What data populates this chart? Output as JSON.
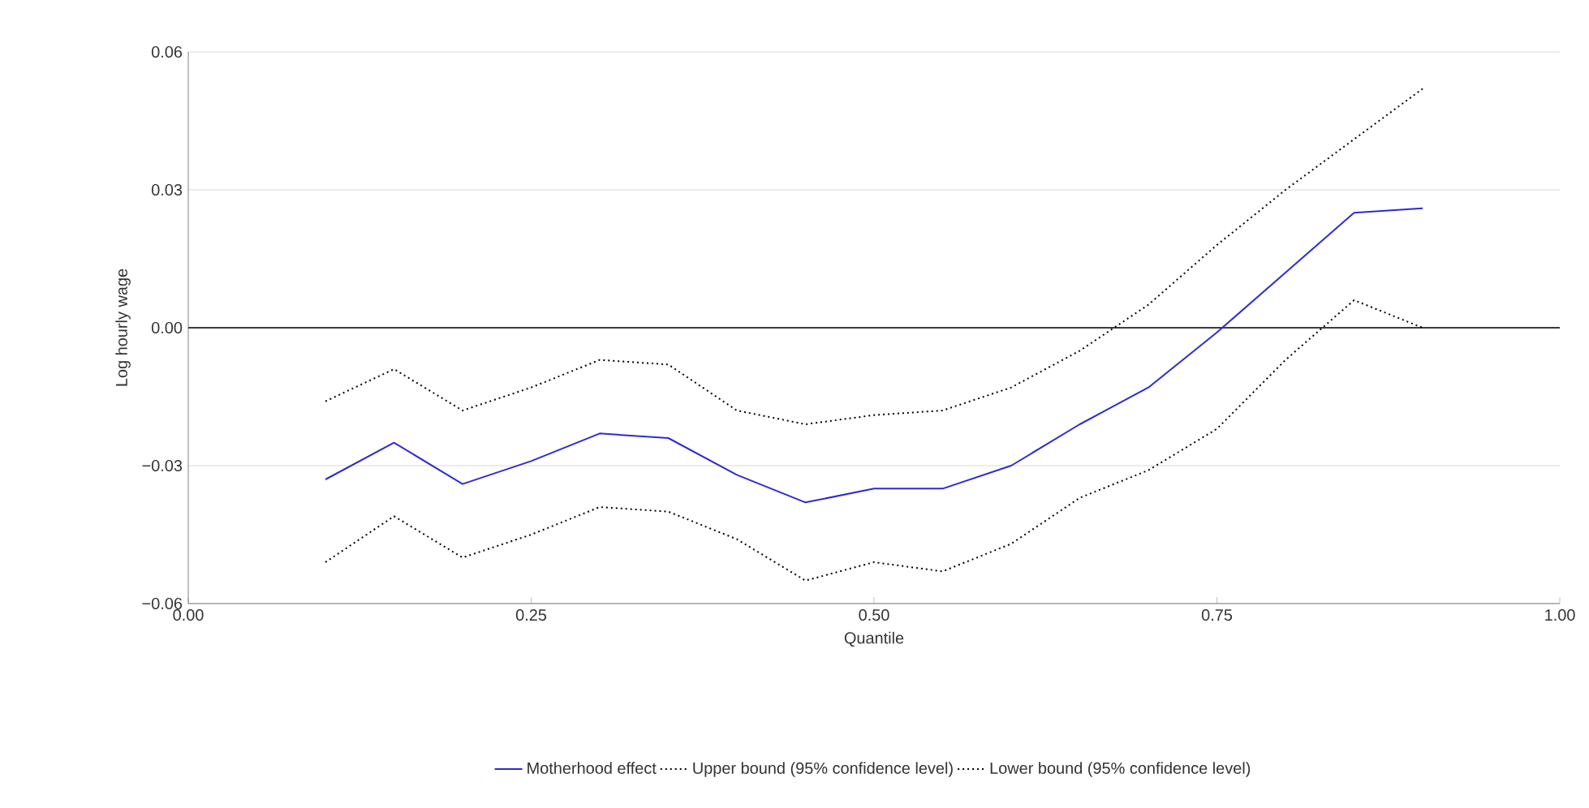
{
  "chart_data": {
    "type": "line",
    "xlabel": "Quantile",
    "ylabel": "Log hourly wage",
    "x": [
      0.1,
      0.15,
      0.2,
      0.25,
      0.3,
      0.35,
      0.4,
      0.45,
      0.5,
      0.55,
      0.6,
      0.65,
      0.7,
      0.75,
      0.8,
      0.85,
      0.9
    ],
    "series": [
      {
        "name": "Motherhood effect",
        "color": "#2b2bd4",
        "line_style": "solid",
        "values": [
          -0.033,
          -0.025,
          -0.034,
          -0.029,
          -0.023,
          -0.024,
          -0.032,
          -0.038,
          -0.035,
          -0.035,
          -0.03,
          -0.021,
          -0.013,
          -0.001,
          0.012,
          0.025,
          0.026
        ]
      },
      {
        "name": "Upper bound (95% confidence level)",
        "color": "#000000",
        "line_style": "dotted",
        "values": [
          -0.016,
          -0.009,
          -0.018,
          -0.013,
          -0.007,
          -0.008,
          -0.018,
          -0.021,
          -0.019,
          -0.018,
          -0.013,
          -0.005,
          0.005,
          0.018,
          0.03,
          0.041,
          0.052
        ]
      },
      {
        "name": "Lower bound (95% confidence level)",
        "color": "#000000",
        "line_style": "dotted",
        "values": [
          -0.051,
          -0.041,
          -0.05,
          -0.045,
          -0.039,
          -0.04,
          -0.046,
          -0.055,
          -0.051,
          -0.053,
          -0.047,
          -0.037,
          -0.031,
          -0.022,
          -0.007,
          0.006,
          0.0
        ]
      }
    ],
    "xlim": [
      0,
      1
    ],
    "xticks": [
      {
        "value": 0,
        "label": "0.00"
      },
      {
        "value": 0.25,
        "label": "0.25"
      },
      {
        "value": 0.5,
        "label": "0.50"
      },
      {
        "value": 0.75,
        "label": "0.75"
      },
      {
        "value": 1,
        "label": "1.00"
      }
    ],
    "ylim": [
      -0.06,
      0.06
    ],
    "yticks": [
      {
        "value": -0.06,
        "label": "−0.06"
      },
      {
        "value": -0.03,
        "label": "−0.03"
      },
      {
        "value": 0,
        "label": "0.00"
      },
      {
        "value": 0.03,
        "label": "0.03"
      },
      {
        "value": 0.06,
        "label": "0.06"
      }
    ],
    "ref_lines": [
      {
        "axis": "y",
        "value": 0,
        "color": "#000000"
      }
    ],
    "grid": "y",
    "legend": "bottom",
    "marker": "none"
  }
}
